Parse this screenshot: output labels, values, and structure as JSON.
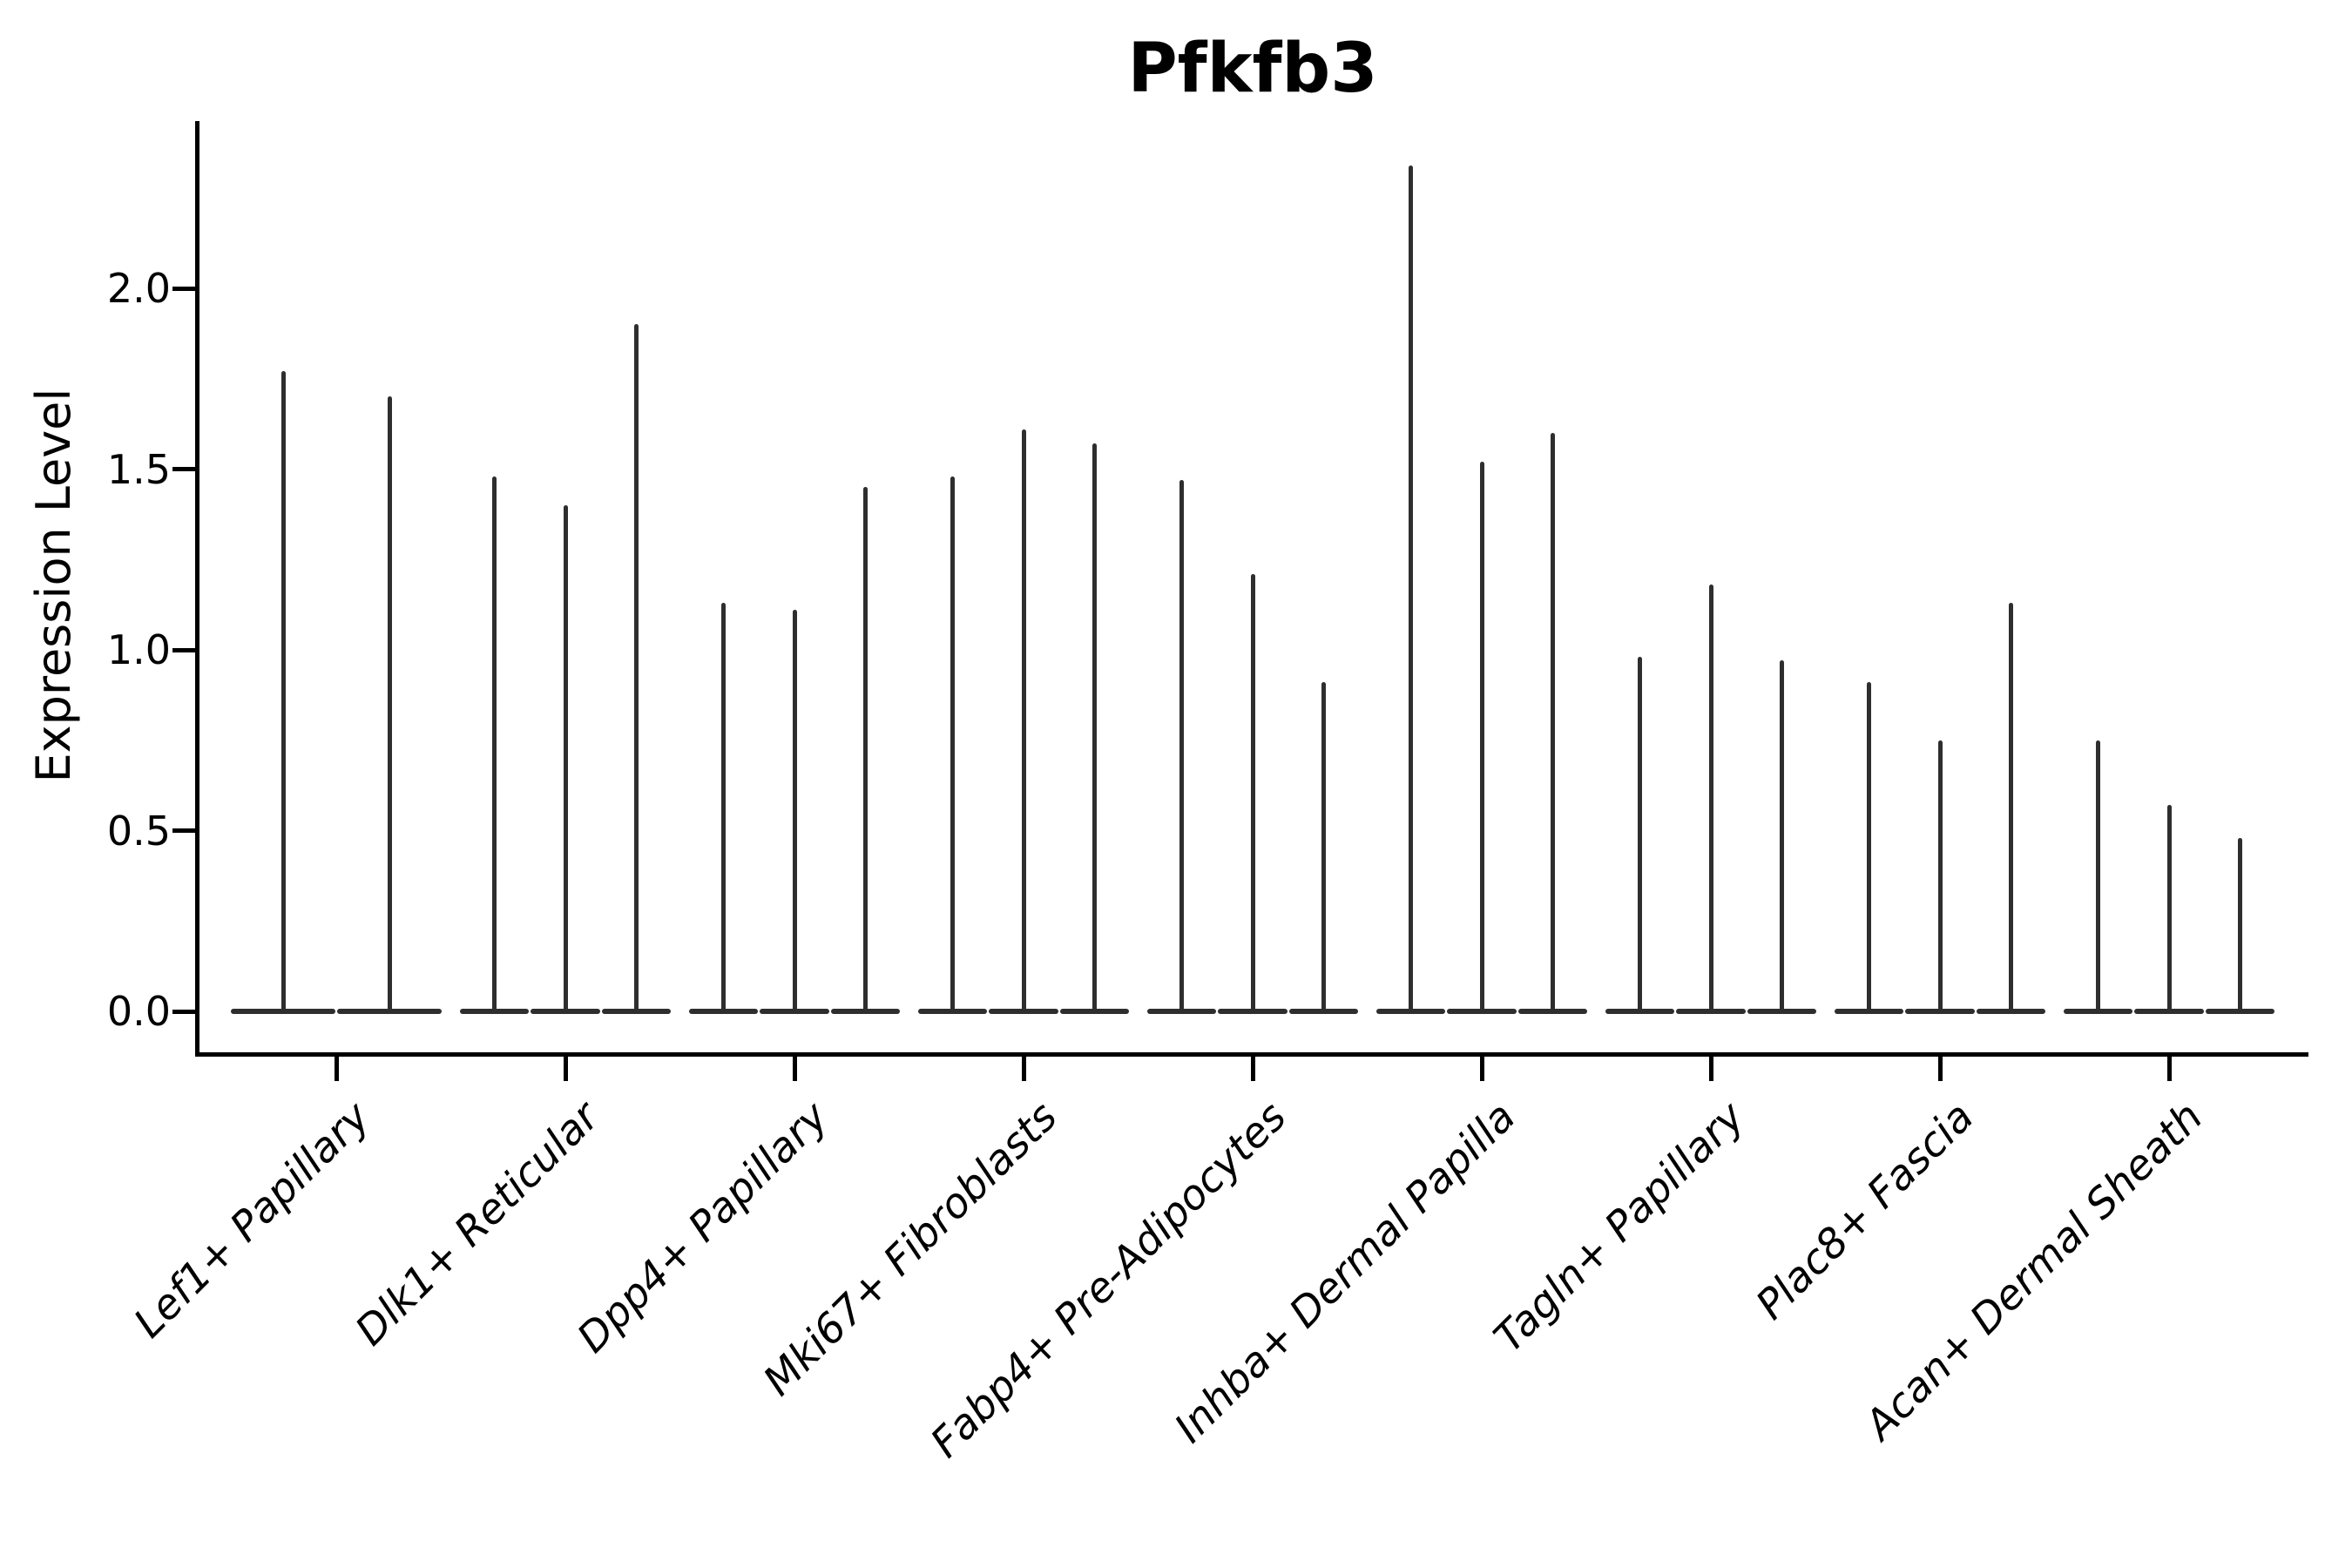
{
  "figure": {
    "background": "#ffffff"
  },
  "axes": {
    "ylabel": "Expression Level",
    "ytick_labels": [
      "0.0",
      "0.5",
      "1.0",
      "1.5",
      "2.0"
    ]
  },
  "colors": {
    "violin": "#2e2e2e",
    "axis": "#000000",
    "text": "#000000"
  },
  "chart_data": {
    "type": "violin",
    "title": "Pfkfb3",
    "xlabel": "",
    "ylabel": "Expression Level",
    "ylim": [
      -0.12,
      2.46
    ],
    "yticks": [
      0.0,
      0.5,
      1.0,
      1.5,
      2.0
    ],
    "grid": false,
    "legend": "none",
    "categories": [
      "Lef1+ Papillary",
      "Dlk1+ Reticular",
      "Dpp4+ Papillary",
      "Mki67+ Fibroblasts",
      "Fabp4+ Pre-Adipocytes",
      "Inhba+ Dermal Papilla",
      "Tagln+ Papillary",
      "Plac8+ Fascia",
      "Acan+ Dermal Sheath"
    ],
    "violins_per_category": [
      2,
      3,
      3,
      3,
      3,
      3,
      3,
      3,
      3
    ],
    "values": [
      [
        1.77,
        1.7
      ],
      [
        1.48,
        1.4,
        1.9
      ],
      [
        1.13,
        1.11,
        1.45
      ],
      [
        1.48,
        1.61,
        1.57
      ],
      [
        1.47,
        1.21,
        0.91
      ],
      [
        2.34,
        1.52,
        1.6
      ],
      [
        0.98,
        1.18,
        0.97
      ],
      [
        0.91,
        0.75,
        1.13
      ],
      [
        0.75,
        0.57,
        0.48
      ]
    ]
  }
}
